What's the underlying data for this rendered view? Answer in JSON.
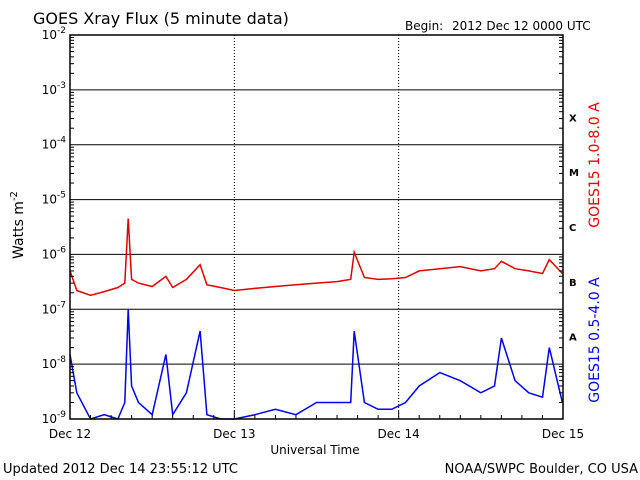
{
  "header": {
    "title": "GOES Xray Flux (5 minute data)",
    "begin_label": "Begin:",
    "begin_value": "2012 Dec 12 0000 UTC"
  },
  "footer": {
    "updated": "Updated 2012 Dec 14 23:55:12 UTC",
    "credit": "NOAA/SWPC Boulder, CO USA"
  },
  "colors": {
    "long_channel": "#e00000",
    "short_channel": "#0000ee",
    "axes": "#000000"
  },
  "chart_data": {
    "type": "line",
    "title": "GOES Xray Flux (5 minute data)",
    "xlabel": "Universal Time",
    "ylabel": "Watts m",
    "ylabel_sup": "-2",
    "yscale": "log",
    "ylim": [
      1e-09,
      0.01
    ],
    "xlim": [
      "2012-12-12 00:00",
      "2012-12-15 00:00"
    ],
    "xticks": [
      "Dec 12",
      "Dec 13",
      "Dec 14",
      "Dec 15"
    ],
    "yticks": [
      {
        "base": "10",
        "exp": "-9"
      },
      {
        "base": "10",
        "exp": "-8"
      },
      {
        "base": "10",
        "exp": "-7"
      },
      {
        "base": "10",
        "exp": "-6"
      },
      {
        "base": "10",
        "exp": "-5"
      },
      {
        "base": "10",
        "exp": "-4"
      },
      {
        "base": "10",
        "exp": "-3"
      },
      {
        "base": "10",
        "exp": "-2"
      }
    ],
    "flare_classes": [
      {
        "label": "X",
        "level": 0.0001
      },
      {
        "label": "M",
        "level": 1e-05
      },
      {
        "label": "C",
        "level": 1e-06
      },
      {
        "label": "B",
        "level": 1e-07
      },
      {
        "label": "A",
        "level": 1e-08
      }
    ],
    "grid": true,
    "series": [
      {
        "name": "GOES15 1.0-8.0 A",
        "color": "#e00000",
        "x": [
          "2012-12-12 00:00",
          "2012-12-12 01:00",
          "2012-12-12 03:00",
          "2012-12-12 05:00",
          "2012-12-12 07:00",
          "2012-12-12 08:00",
          "2012-12-12 08:30",
          "2012-12-12 09:00",
          "2012-12-12 10:00",
          "2012-12-12 12:00",
          "2012-12-12 14:00",
          "2012-12-12 15:00",
          "2012-12-12 17:00",
          "2012-12-12 19:00",
          "2012-12-12 20:00",
          "2012-12-12 22:00",
          "2012-12-13 00:00",
          "2012-12-13 03:00",
          "2012-12-13 06:00",
          "2012-12-13 09:00",
          "2012-12-13 12:00",
          "2012-12-13 15:00",
          "2012-12-13 17:00",
          "2012-12-13 17:30",
          "2012-12-13 19:00",
          "2012-12-13 21:00",
          "2012-12-13 23:00",
          "2012-12-14 01:00",
          "2012-12-14 03:00",
          "2012-12-14 06:00",
          "2012-12-14 09:00",
          "2012-12-14 12:00",
          "2012-12-14 14:00",
          "2012-12-14 15:00",
          "2012-12-14 17:00",
          "2012-12-14 19:00",
          "2012-12-14 21:00",
          "2012-12-14 22:00",
          "2012-12-14 23:55"
        ],
        "values": [
          5e-07,
          2.2e-07,
          1.8e-07,
          2.1e-07,
          2.5e-07,
          3e-07,
          4.5e-06,
          3.5e-07,
          3e-07,
          2.6e-07,
          4e-07,
          2.5e-07,
          3.5e-07,
          6.5e-07,
          2.8e-07,
          2.5e-07,
          2.2e-07,
          2.4e-07,
          2.6e-07,
          2.8e-07,
          3e-07,
          3.2e-07,
          3.5e-07,
          1.1e-06,
          3.8e-07,
          3.5e-07,
          3.6e-07,
          3.8e-07,
          5e-07,
          5.5e-07,
          6e-07,
          5e-07,
          5.5e-07,
          7.5e-07,
          5.5e-07,
          5e-07,
          4.5e-07,
          8e-07,
          4.5e-07
        ]
      },
      {
        "name": "GOES15 0.5-4.0 A",
        "color": "#0000ee",
        "x": [
          "2012-12-12 00:00",
          "2012-12-12 01:00",
          "2012-12-12 03:00",
          "2012-12-12 05:00",
          "2012-12-12 07:00",
          "2012-12-12 08:00",
          "2012-12-12 08:30",
          "2012-12-12 09:00",
          "2012-12-12 10:00",
          "2012-12-12 12:00",
          "2012-12-12 14:00",
          "2012-12-12 15:00",
          "2012-12-12 17:00",
          "2012-12-12 19:00",
          "2012-12-12 20:00",
          "2012-12-12 22:00",
          "2012-12-13 00:00",
          "2012-12-13 03:00",
          "2012-12-13 06:00",
          "2012-12-13 09:00",
          "2012-12-13 12:00",
          "2012-12-13 15:00",
          "2012-12-13 17:00",
          "2012-12-13 17:30",
          "2012-12-13 19:00",
          "2012-12-13 21:00",
          "2012-12-13 23:00",
          "2012-12-14 01:00",
          "2012-12-14 03:00",
          "2012-12-14 06:00",
          "2012-12-14 09:00",
          "2012-12-14 12:00",
          "2012-12-14 14:00",
          "2012-12-14 15:00",
          "2012-12-14 17:00",
          "2012-12-14 19:00",
          "2012-12-14 21:00",
          "2012-12-14 22:00",
          "2012-12-14 23:55"
        ],
        "values": [
          1.5e-08,
          3e-09,
          1e-09,
          1.2e-09,
          1e-09,
          2e-09,
          1e-07,
          4e-09,
          2e-09,
          1.2e-09,
          1.5e-08,
          1.2e-09,
          3e-09,
          4e-08,
          1.2e-09,
          1e-09,
          1e-09,
          1.2e-09,
          1.5e-09,
          1.2e-09,
          2e-09,
          2e-09,
          2e-09,
          4e-08,
          2e-09,
          1.5e-09,
          1.5e-09,
          2e-09,
          4e-09,
          7e-09,
          5e-09,
          3e-09,
          4e-09,
          3e-08,
          5e-09,
          3e-09,
          2.5e-09,
          2e-08,
          2e-09
        ]
      }
    ]
  }
}
